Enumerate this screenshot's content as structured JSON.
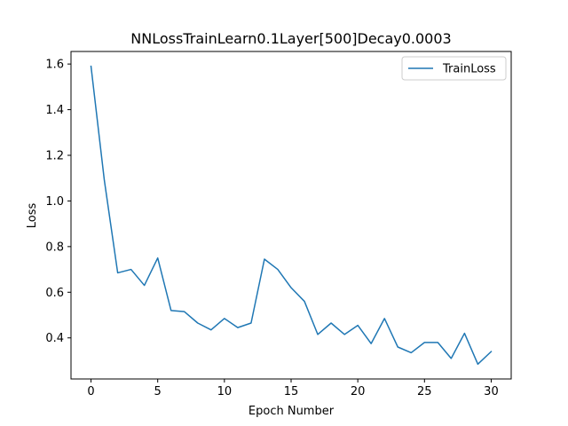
{
  "chart_data": {
    "type": "line",
    "title": "NNLossTrainLearn0.1Layer[500]Decay0.0003",
    "xlabel": "Epoch Number",
    "ylabel": "Loss",
    "xlim": [
      -1.5,
      31.5
    ],
    "ylim": [
      0.22,
      1.655
    ],
    "x_ticks": [
      0,
      5,
      10,
      15,
      20,
      25,
      30
    ],
    "x_tick_labels": [
      "0",
      "5",
      "10",
      "15",
      "20",
      "25",
      "30"
    ],
    "y_ticks": [
      0.4,
      0.6,
      0.8,
      1.0,
      1.2,
      1.4,
      1.6
    ],
    "y_tick_labels": [
      "0.4",
      "0.6",
      "0.8",
      "1.0",
      "1.2",
      "1.4",
      "1.6"
    ],
    "grid": false,
    "legend_position": "top-right",
    "series": [
      {
        "name": "TrainLoss",
        "color": "#1f77b4",
        "x": [
          0,
          1,
          2,
          3,
          4,
          5,
          6,
          7,
          8,
          9,
          10,
          11,
          12,
          13,
          14,
          15,
          16,
          17,
          18,
          19,
          20,
          21,
          22,
          23,
          24,
          25,
          26,
          27,
          28,
          29,
          30
        ],
        "values": [
          1.59,
          1.09,
          0.685,
          0.7,
          0.63,
          0.75,
          0.52,
          0.515,
          0.465,
          0.435,
          0.485,
          0.445,
          0.465,
          0.745,
          0.7,
          0.62,
          0.56,
          0.415,
          0.465,
          0.415,
          0.455,
          0.375,
          0.485,
          0.36,
          0.335,
          0.38,
          0.38,
          0.31,
          0.42,
          0.285,
          0.34
        ]
      }
    ]
  }
}
